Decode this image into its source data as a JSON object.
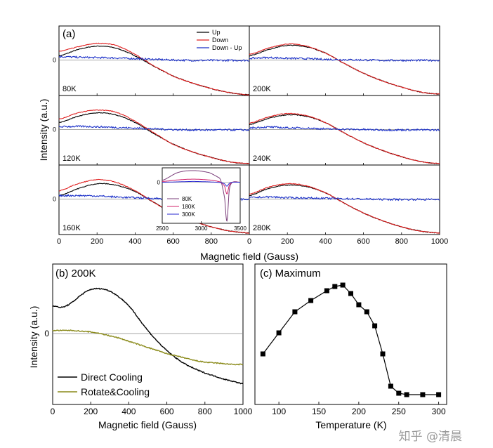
{
  "chart_data": [
    {
      "type": "line",
      "label": "(a)",
      "xlabel": "Magnetic field (Gauss)",
      "ylabel": "Intensity (a.u.)",
      "xlim": [
        0,
        1000
      ],
      "xticks": [
        0,
        200,
        400,
        600,
        800,
        1000
      ],
      "ytick_label": "0",
      "legend": [
        "Up",
        "Down",
        "Down - Up"
      ],
      "legend_position": "top-right of 80K panel",
      "colors": {
        "Up": "#000000",
        "Down": "#e02020",
        "Down - Up": "#1a2fc8",
        "zero": "#888888"
      },
      "panels": [
        {
          "temp": "80K",
          "x": [
            0,
            100,
            200,
            300,
            400,
            500,
            600,
            700,
            800,
            900,
            1000
          ],
          "up": [
            0.12,
            0.3,
            0.4,
            0.34,
            0.12,
            -0.18,
            -0.46,
            -0.66,
            -0.82,
            -0.94,
            -1.0
          ],
          "down": [
            0.25,
            0.38,
            0.48,
            0.42,
            0.16,
            -0.17,
            -0.46,
            -0.66,
            -0.82,
            -0.94,
            -1.0
          ],
          "diff": [
            0.1,
            0.08,
            0.07,
            0.06,
            0.04,
            0.02,
            0.0,
            -0.01,
            -0.01,
            -0.01,
            -0.01
          ]
        },
        {
          "temp": "200K",
          "x": [
            0,
            100,
            200,
            300,
            400,
            500,
            600,
            700,
            800,
            900,
            1000
          ],
          "up": [
            0.12,
            0.3,
            0.42,
            0.38,
            0.2,
            -0.1,
            -0.38,
            -0.6,
            -0.78,
            -0.92,
            -0.98
          ],
          "down": [
            0.16,
            0.34,
            0.46,
            0.4,
            0.2,
            -0.1,
            -0.38,
            -0.6,
            -0.78,
            -0.92,
            -0.98
          ],
          "diff": [
            0.05,
            0.07,
            0.05,
            0.04,
            0.02,
            0.01,
            0.0,
            -0.01,
            -0.01,
            -0.01,
            -0.01
          ]
        },
        {
          "temp": "120K",
          "x": [
            0,
            100,
            200,
            300,
            400,
            500,
            600,
            700,
            800,
            900,
            1000
          ],
          "up": [
            0.2,
            0.38,
            0.48,
            0.42,
            0.2,
            -0.12,
            -0.42,
            -0.64,
            -0.8,
            -0.93,
            -0.98
          ],
          "down": [
            0.3,
            0.48,
            0.56,
            0.5,
            0.24,
            -0.1,
            -0.42,
            -0.64,
            -0.8,
            -0.93,
            -0.98
          ],
          "diff": [
            0.08,
            0.09,
            0.08,
            0.06,
            0.04,
            0.02,
            0.0,
            -0.01,
            -0.01,
            -0.01,
            -0.01
          ]
        },
        {
          "temp": "240K",
          "x": [
            0,
            100,
            200,
            300,
            400,
            500,
            600,
            700,
            800,
            900,
            1000
          ],
          "up": [
            0.14,
            0.32,
            0.42,
            0.38,
            0.2,
            -0.1,
            -0.38,
            -0.6,
            -0.78,
            -0.92,
            -0.98
          ],
          "down": [
            0.18,
            0.36,
            0.46,
            0.4,
            0.2,
            -0.1,
            -0.38,
            -0.6,
            -0.78,
            -0.92,
            -0.98
          ],
          "diff": [
            0.05,
            0.07,
            0.05,
            0.04,
            0.02,
            0.01,
            0.0,
            -0.01,
            -0.01,
            -0.01,
            -0.01
          ]
        },
        {
          "temp": "160K",
          "x": [
            0,
            100,
            200,
            300,
            400,
            500,
            600,
            700,
            800,
            900,
            1000
          ],
          "up": [
            0.1,
            0.3,
            0.44,
            0.4,
            0.22,
            -0.1,
            -0.4,
            -0.62,
            -0.8,
            -0.92,
            -0.98
          ],
          "down": [
            0.24,
            0.44,
            0.56,
            0.48,
            0.24,
            -0.1,
            -0.4,
            -0.62,
            -0.8,
            -0.92,
            -0.98
          ],
          "diff": [
            0.1,
            0.1,
            0.09,
            0.06,
            0.04,
            0.02,
            0.0,
            -0.01,
            -0.01,
            -0.01,
            -0.01
          ]
        },
        {
          "temp": "280K",
          "x": [
            0,
            100,
            200,
            300,
            400,
            500,
            600,
            700,
            800,
            900,
            1000
          ],
          "up": [
            0.1,
            0.3,
            0.4,
            0.36,
            0.18,
            -0.12,
            -0.4,
            -0.62,
            -0.8,
            -0.92,
            -0.98
          ],
          "down": [
            0.14,
            0.34,
            0.44,
            0.38,
            0.18,
            -0.12,
            -0.4,
            -0.62,
            -0.8,
            -0.92,
            -0.98
          ],
          "diff": [
            0.04,
            0.06,
            0.04,
            0.03,
            0.02,
            0.01,
            0.0,
            -0.01,
            -0.01,
            -0.01,
            -0.01
          ]
        }
      ],
      "inset": {
        "xlim": [
          2500,
          3500
        ],
        "xticks": [
          2500,
          3000,
          3500
        ],
        "ytick_label": "0",
        "legend": [
          "80K",
          "180K",
          "300K"
        ],
        "colors": {
          "80K": "#7a3d7a",
          "180K": "#d0206a",
          "300K": "#2a2ad0"
        },
        "series": [
          {
            "name": "80K",
            "x": [
              2500,
              2700,
              2900,
              3100,
              3200,
              3250,
              3300,
              3330,
              3360,
              3400,
              3500
            ],
            "y": [
              0.05,
              0.25,
              0.3,
              0.25,
              0.15,
              0.05,
              -0.4,
              -1.0,
              -0.2,
              0.0,
              0.0
            ]
          },
          {
            "name": "180K",
            "x": [
              2500,
              2700,
              2900,
              3100,
              3200,
              3250,
              3300,
              3330,
              3360,
              3400,
              3500
            ],
            "y": [
              0.02,
              0.06,
              0.08,
              0.06,
              0.03,
              0.0,
              -0.1,
              -0.3,
              -0.08,
              0.0,
              0.0
            ]
          },
          {
            "name": "300K",
            "x": [
              2500,
              2700,
              2900,
              3100,
              3200,
              3250,
              3300,
              3330,
              3360,
              3400,
              3500
            ],
            "y": [
              0.0,
              0.01,
              0.02,
              0.01,
              0.0,
              -0.01,
              -0.04,
              -0.1,
              -0.03,
              0.0,
              0.0
            ]
          }
        ]
      }
    },
    {
      "type": "line",
      "title": "(b) 200K",
      "xlabel": "Magnetic field (Gauss)",
      "ylabel": "Intensity (a.u.)",
      "xlim": [
        0,
        1000
      ],
      "xticks": [
        0,
        200,
        400,
        600,
        800,
        1000
      ],
      "ytick_label": "0",
      "legend_position": "bottom-left",
      "series": [
        {
          "name": "Direct Cooling",
          "color": "#000000",
          "x": [
            0,
            50,
            100,
            150,
            200,
            250,
            300,
            350,
            400,
            450,
            500,
            550,
            600,
            650,
            700,
            750,
            800,
            850,
            900,
            950,
            1000
          ],
          "y": [
            0.36,
            0.34,
            0.4,
            0.5,
            0.57,
            0.58,
            0.55,
            0.47,
            0.36,
            0.2,
            0.04,
            -0.1,
            -0.22,
            -0.32,
            -0.4,
            -0.46,
            -0.51,
            -0.55,
            -0.59,
            -0.62,
            -0.65
          ]
        },
        {
          "name": "Rotate&Cooling",
          "color": "#8a8a1a",
          "x": [
            0,
            50,
            100,
            150,
            200,
            250,
            300,
            350,
            400,
            450,
            500,
            550,
            600,
            650,
            700,
            750,
            800,
            850,
            900,
            950,
            1000
          ],
          "y": [
            0.04,
            0.04,
            0.04,
            0.03,
            0.02,
            0.0,
            -0.03,
            -0.06,
            -0.1,
            -0.14,
            -0.18,
            -0.22,
            -0.26,
            -0.29,
            -0.32,
            -0.35,
            -0.37,
            -0.38,
            -0.39,
            -0.4,
            -0.4
          ]
        }
      ]
    },
    {
      "type": "scatter",
      "title": "(c) Maximum",
      "xlabel": "Temperature (K)",
      "ylabel": "",
      "xlim": [
        70,
        310
      ],
      "ylim": [
        0,
        1
      ],
      "xticks": [
        100,
        150,
        200,
        250,
        300
      ],
      "x": [
        80,
        100,
        120,
        140,
        160,
        170,
        180,
        190,
        200,
        210,
        220,
        230,
        240,
        250,
        260,
        280,
        300
      ],
      "y": [
        0.36,
        0.51,
        0.66,
        0.74,
        0.81,
        0.84,
        0.85,
        0.79,
        0.71,
        0.66,
        0.56,
        0.36,
        0.13,
        0.08,
        0.07,
        0.07,
        0.07
      ]
    }
  ],
  "watermark": "知乎 @清晨"
}
